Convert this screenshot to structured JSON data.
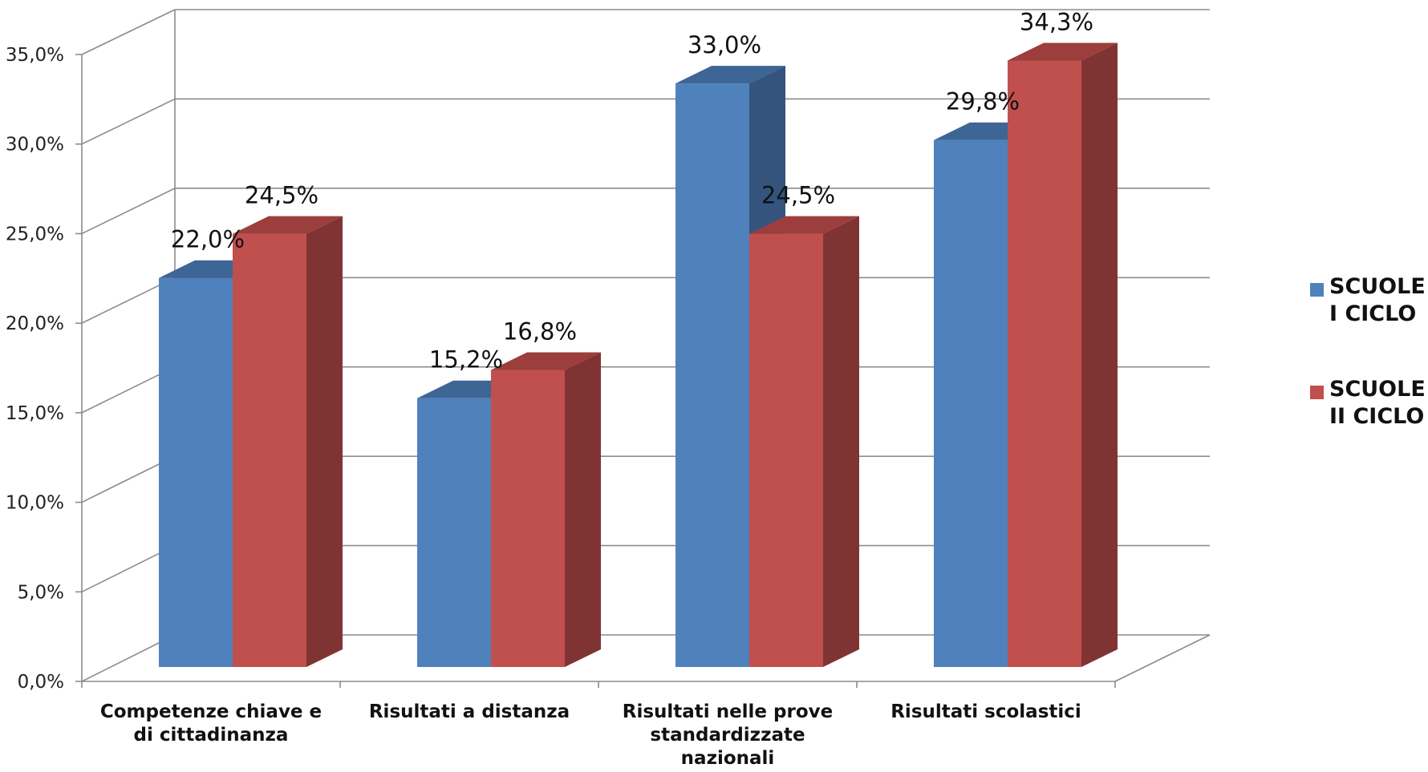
{
  "chart_data": {
    "type": "bar",
    "style": "3d-clustered-column",
    "categories": [
      [
        "Competenze chiave e",
        "di cittadinanza"
      ],
      [
        "Risultati a distanza"
      ],
      [
        "Risultati nelle prove",
        "standardizzate",
        "nazionali"
      ],
      [
        "Risultati scolastici"
      ]
    ],
    "series": [
      {
        "name": [
          "SCUOLE",
          "I CICLO"
        ],
        "values": [
          22.0,
          15.2,
          33.0,
          29.8
        ],
        "labels": [
          "22,0%",
          "15,2%",
          "33,0%",
          "29,8%"
        ],
        "color": "#4F81BD",
        "side_color": "#34547E",
        "top_color": "#3D6596"
      },
      {
        "name": [
          "SCUOLE",
          "II CICLO"
        ],
        "values": [
          24.5,
          16.8,
          24.5,
          34.3
        ],
        "labels": [
          "24,5%",
          "16,8%",
          "24,5%",
          "34,3%"
        ],
        "color": "#C0504D",
        "side_color": "#7F3433",
        "top_color": "#9B3E3C"
      }
    ],
    "y_ticks": [
      "0,0%",
      "5,0%",
      "10,0%",
      "15,0%",
      "20,0%",
      "25,0%",
      "30,0%",
      "35,0%"
    ],
    "ylim": [
      0,
      35
    ],
    "ytick_step": 5,
    "grid": true,
    "legend_position": "right",
    "title": "",
    "xlabel": "",
    "ylabel": ""
  }
}
